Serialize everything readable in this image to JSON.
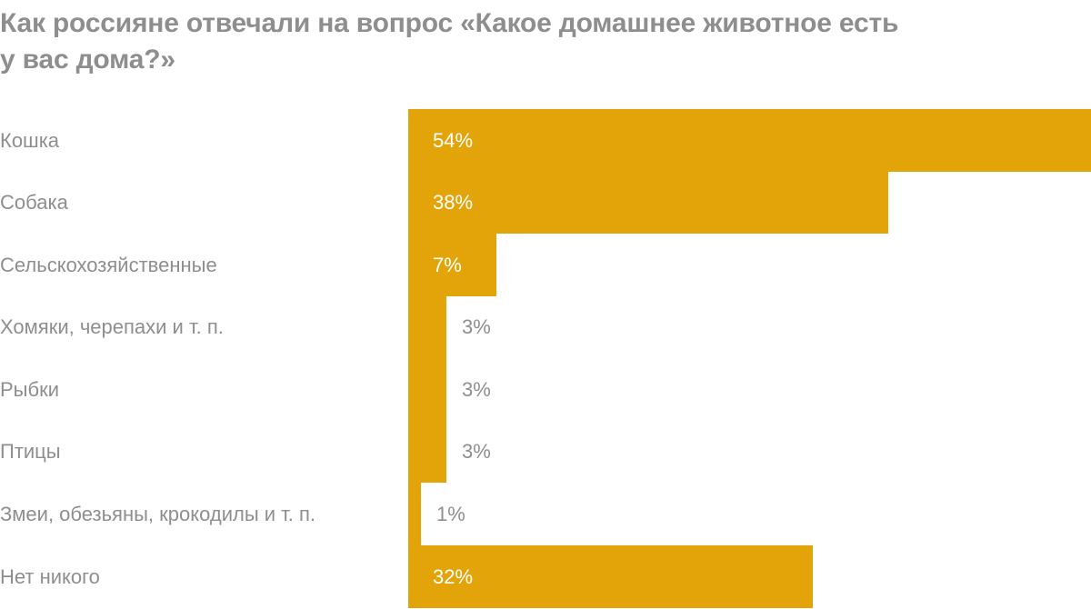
{
  "title": "Как россияне отвечали на вопрос «Какое домашнее животное есть у вас дома?»",
  "title_lines": [
    "Как россияне отвечали на вопрос «Какое домашнее животное есть",
    "у вас дома?»"
  ],
  "colors": {
    "bar": "#e3a40a",
    "text": "#8e8e8e",
    "value_inside": "#ffffff"
  },
  "rows": [
    {
      "label": "Кошка",
      "value_label": "54%"
    },
    {
      "label": "Собака",
      "value_label": "38%"
    },
    {
      "label": "Сельскохозяйственные",
      "value_label": "7%"
    },
    {
      "label": "Хомяки, черепахи и т. п.",
      "value_label": "3%"
    },
    {
      "label": "Рыбки",
      "value_label": "3%"
    },
    {
      "label": "Птицы",
      "value_label": "3%"
    },
    {
      "label": "Змеи, обезьяны, крокодилы и т. п.",
      "value_label": "1%"
    },
    {
      "label": "Нет никого",
      "value_label": "32%"
    }
  ],
  "chart_data": {
    "type": "bar",
    "orientation": "horizontal",
    "title": "Как россияне отвечали на вопрос «Какое домашнее животное есть у вас дома?»",
    "categories": [
      "Кошка",
      "Собака",
      "Сельскохозяйственные",
      "Хомяки, черепахи и т. п.",
      "Рыбки",
      "Птицы",
      "Змеи, обезьяны, крокодилы и т. п.",
      "Нет никого"
    ],
    "values": [
      54,
      38,
      7,
      3,
      3,
      3,
      1,
      32
    ],
    "unit": "%",
    "xlabel": "",
    "ylabel": "",
    "grid": false,
    "legend": null,
    "data_labels": true
  }
}
